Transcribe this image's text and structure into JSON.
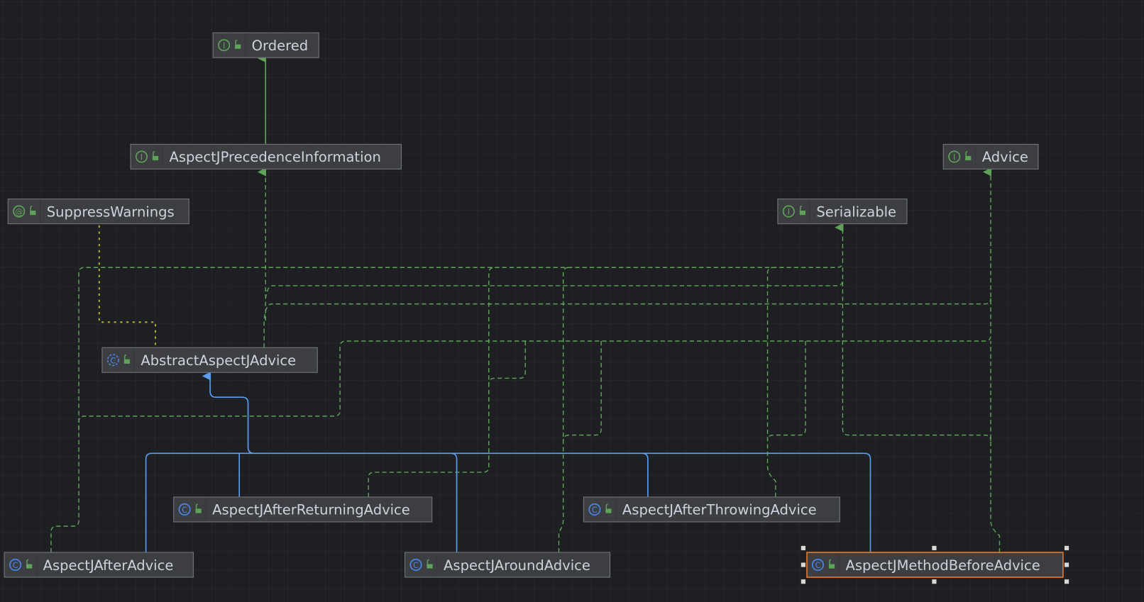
{
  "diagram": {
    "type": "uml-class-hierarchy",
    "selected_node": "AspectJMethodBeforeAdvice",
    "colors": {
      "background": "#1e1f22",
      "grid": "#2b2d31",
      "node_fill": "#3c3e41",
      "node_border": "#6b6e73",
      "selected_border": "#e07b2c",
      "interface_icon": "#5fa35a",
      "class_icon": "#4a86e8",
      "realization_edge": "#5fa35a",
      "extends_edge": "#5a9ef5",
      "annotation_edge": "#b5b02a"
    },
    "nodes": [
      {
        "id": "ordered",
        "name": "Ordered",
        "kind": "interface",
        "icon": "interface-icon"
      },
      {
        "id": "precedence",
        "name": "AspectJPrecedenceInformation",
        "kind": "interface",
        "icon": "interface-icon"
      },
      {
        "id": "advice",
        "name": "Advice",
        "kind": "interface",
        "icon": "interface-icon"
      },
      {
        "id": "suppress",
        "name": "SuppressWarnings",
        "kind": "annotation",
        "icon": "annotation-icon"
      },
      {
        "id": "serializable",
        "name": "Serializable",
        "kind": "interface",
        "icon": "interface-icon"
      },
      {
        "id": "abstract",
        "name": "AbstractAspectJAdvice",
        "kind": "abstract-class",
        "icon": "abstract-class-icon"
      },
      {
        "id": "afterReturning",
        "name": "AspectJAfterReturningAdvice",
        "kind": "class",
        "icon": "class-icon"
      },
      {
        "id": "afterThrowing",
        "name": "AspectJAfterThrowingAdvice",
        "kind": "class",
        "icon": "class-icon"
      },
      {
        "id": "after",
        "name": "AspectJAfterAdvice",
        "kind": "class",
        "icon": "class-icon"
      },
      {
        "id": "around",
        "name": "AspectJAroundAdvice",
        "kind": "class",
        "icon": "class-icon"
      },
      {
        "id": "methodBefore",
        "name": "AspectJMethodBeforeAdvice",
        "kind": "class",
        "icon": "class-icon"
      }
    ],
    "edges": [
      {
        "from": "precedence",
        "to": "ordered",
        "type": "extends-interface"
      },
      {
        "from": "abstract",
        "to": "precedence",
        "type": "implements"
      },
      {
        "from": "abstract",
        "to": "suppress",
        "type": "annotated-by"
      },
      {
        "from": "after",
        "to": "abstract",
        "type": "extends"
      },
      {
        "from": "afterReturning",
        "to": "abstract",
        "type": "extends"
      },
      {
        "from": "around",
        "to": "abstract",
        "type": "extends"
      },
      {
        "from": "afterThrowing",
        "to": "abstract",
        "type": "extends"
      },
      {
        "from": "methodBefore",
        "to": "abstract",
        "type": "extends"
      },
      {
        "from": "abstract",
        "to": "serializable",
        "type": "implements"
      },
      {
        "from": "after",
        "to": "serializable",
        "type": "implements"
      },
      {
        "from": "afterReturning",
        "to": "serializable",
        "type": "implements"
      },
      {
        "from": "around",
        "to": "serializable",
        "type": "implements"
      },
      {
        "from": "afterThrowing",
        "to": "serializable",
        "type": "implements"
      },
      {
        "from": "methodBefore",
        "to": "serializable",
        "type": "implements"
      },
      {
        "from": "after",
        "to": "advice",
        "type": "implements"
      },
      {
        "from": "afterReturning",
        "to": "advice",
        "type": "implements"
      },
      {
        "from": "around",
        "to": "advice",
        "type": "implements"
      },
      {
        "from": "afterThrowing",
        "to": "advice",
        "type": "implements"
      },
      {
        "from": "methodBefore",
        "to": "advice",
        "type": "implements"
      }
    ]
  }
}
